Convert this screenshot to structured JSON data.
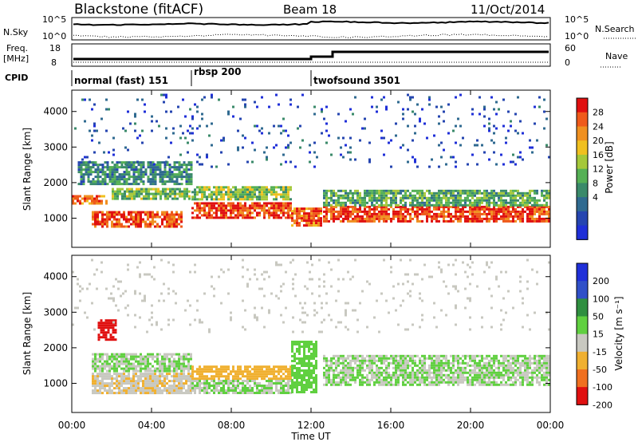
{
  "header": {
    "station": "Blackstone (fitACF)",
    "beam": "Beam 18",
    "date": "11/Oct/2014"
  },
  "noise_panel": {
    "left_label": "N.Sky",
    "right_label": "N.Search",
    "left_ticks": [
      "10^5",
      "10^0"
    ],
    "right_ticks": [
      "10^5",
      "10^0"
    ]
  },
  "freq_panel": {
    "left_label_1": "Freq.",
    "left_label_2": "[MHz]",
    "right_label": "Nave",
    "left_ticks": [
      "18",
      "8"
    ],
    "right_ticks": [
      "60",
      "0"
    ]
  },
  "cpid_panel": {
    "label": "CPID",
    "modes": [
      {
        "start_hour": 0.0,
        "name": "normal (fast) 151"
      },
      {
        "start_hour": 6.0,
        "name": "rbsp 200"
      },
      {
        "start_hour": 12.0,
        "name": "twofsound 3501"
      }
    ]
  },
  "power_panel": {
    "ylabel": "Slant Range [km]",
    "yticks": [
      "1000",
      "2000",
      "3000",
      "4000"
    ],
    "colorbar_label": "Power [dB]",
    "colorbar_ticks": [
      "4",
      "8",
      "12",
      "16",
      "20",
      "24",
      "28"
    ],
    "colors": [
      "#1f2fd8",
      "#2545b0",
      "#2f6a90",
      "#3a8a6a",
      "#55b055",
      "#a5c83a",
      "#f0c020",
      "#f09020",
      "#ef5a1a",
      "#e01010"
    ]
  },
  "velocity_panel": {
    "ylabel": "Slant Range [km]",
    "yticks": [
      "1000",
      "2000",
      "3000",
      "4000"
    ],
    "colorbar_label": "Velocity [m s⁻¹]",
    "colorbar_ticks": [
      "200",
      "100",
      "50",
      "15",
      "-15",
      "-50",
      "-100",
      "-200"
    ],
    "colors": [
      "#1f2fd8",
      "#3050c8",
      "#2f8f40",
      "#60d040",
      "#c8c8c0",
      "#f0b030",
      "#f07020",
      "#e01010"
    ]
  },
  "x_axis": {
    "label": "Time UT",
    "ticks": [
      "00:00",
      "04:00",
      "08:00",
      "12:00",
      "16:00",
      "20:00",
      "00:00"
    ]
  },
  "chart_data": [
    {
      "type": "heatmap",
      "title": "Power",
      "x_range_hours": [
        0,
        24
      ],
      "y_range_km": [
        180,
        4600
      ],
      "value_range_db": [
        0,
        30
      ],
      "regions": [
        {
          "t": [
            0.0,
            1.8
          ],
          "r": [
            1350,
            1650
          ],
          "power_db": 24
        },
        {
          "t": [
            1.0,
            5.5
          ],
          "r": [
            700,
            1200
          ],
          "power_db": 26
        },
        {
          "t": [
            2.0,
            6.0
          ],
          "r": [
            1500,
            1850
          ],
          "power_db": 14
        },
        {
          "t": [
            0.3,
            6.0
          ],
          "r": [
            1950,
            2600
          ],
          "power_db": 10
        },
        {
          "t": [
            6.0,
            11.0
          ],
          "r": [
            1000,
            1450
          ],
          "power_db": 27
        },
        {
          "t": [
            6.0,
            11.0
          ],
          "r": [
            1500,
            1900
          ],
          "power_db": 15
        },
        {
          "t": [
            11.0,
            12.6
          ],
          "r": [
            750,
            1300
          ],
          "power_db": 25
        },
        {
          "t": [
            12.6,
            24.0
          ],
          "r": [
            900,
            1350
          ],
          "power_db": 27
        },
        {
          "t": [
            12.6,
            24.0
          ],
          "r": [
            1350,
            1800
          ],
          "power_db": 13
        },
        {
          "t": [
            0.0,
            24.0
          ],
          "r": [
            2400,
            4500
          ],
          "power_db": 5
        }
      ]
    },
    {
      "type": "heatmap",
      "title": "Velocity",
      "x_range_hours": [
        0,
        24
      ],
      "y_range_km": [
        180,
        4600
      ],
      "value_range_ms": [
        -200,
        200
      ],
      "regions": [
        {
          "t": [
            1.0,
            6.0
          ],
          "r": [
            700,
            1300
          ],
          "velocity_ms": -40
        },
        {
          "t": [
            1.0,
            6.0
          ],
          "r": [
            1300,
            1850
          ],
          "velocity_ms": 0
        },
        {
          "t": [
            1.3,
            2.3
          ],
          "r": [
            2200,
            2800
          ],
          "velocity_ms": -180
        },
        {
          "t": [
            6.0,
            11.0
          ],
          "r": [
            1100,
            1500
          ],
          "velocity_ms": -80
        },
        {
          "t": [
            6.0,
            11.0
          ],
          "r": [
            700,
            1100
          ],
          "velocity_ms": 0
        },
        {
          "t": [
            11.0,
            12.3
          ],
          "r": [
            700,
            2200
          ],
          "velocity_ms": 30
        },
        {
          "t": [
            12.6,
            24.0
          ],
          "r": [
            900,
            1800
          ],
          "velocity_ms": 0
        },
        {
          "t": [
            0.0,
            24.0
          ],
          "r": [
            2400,
            4500
          ],
          "velocity_ms": -20
        }
      ]
    }
  ]
}
